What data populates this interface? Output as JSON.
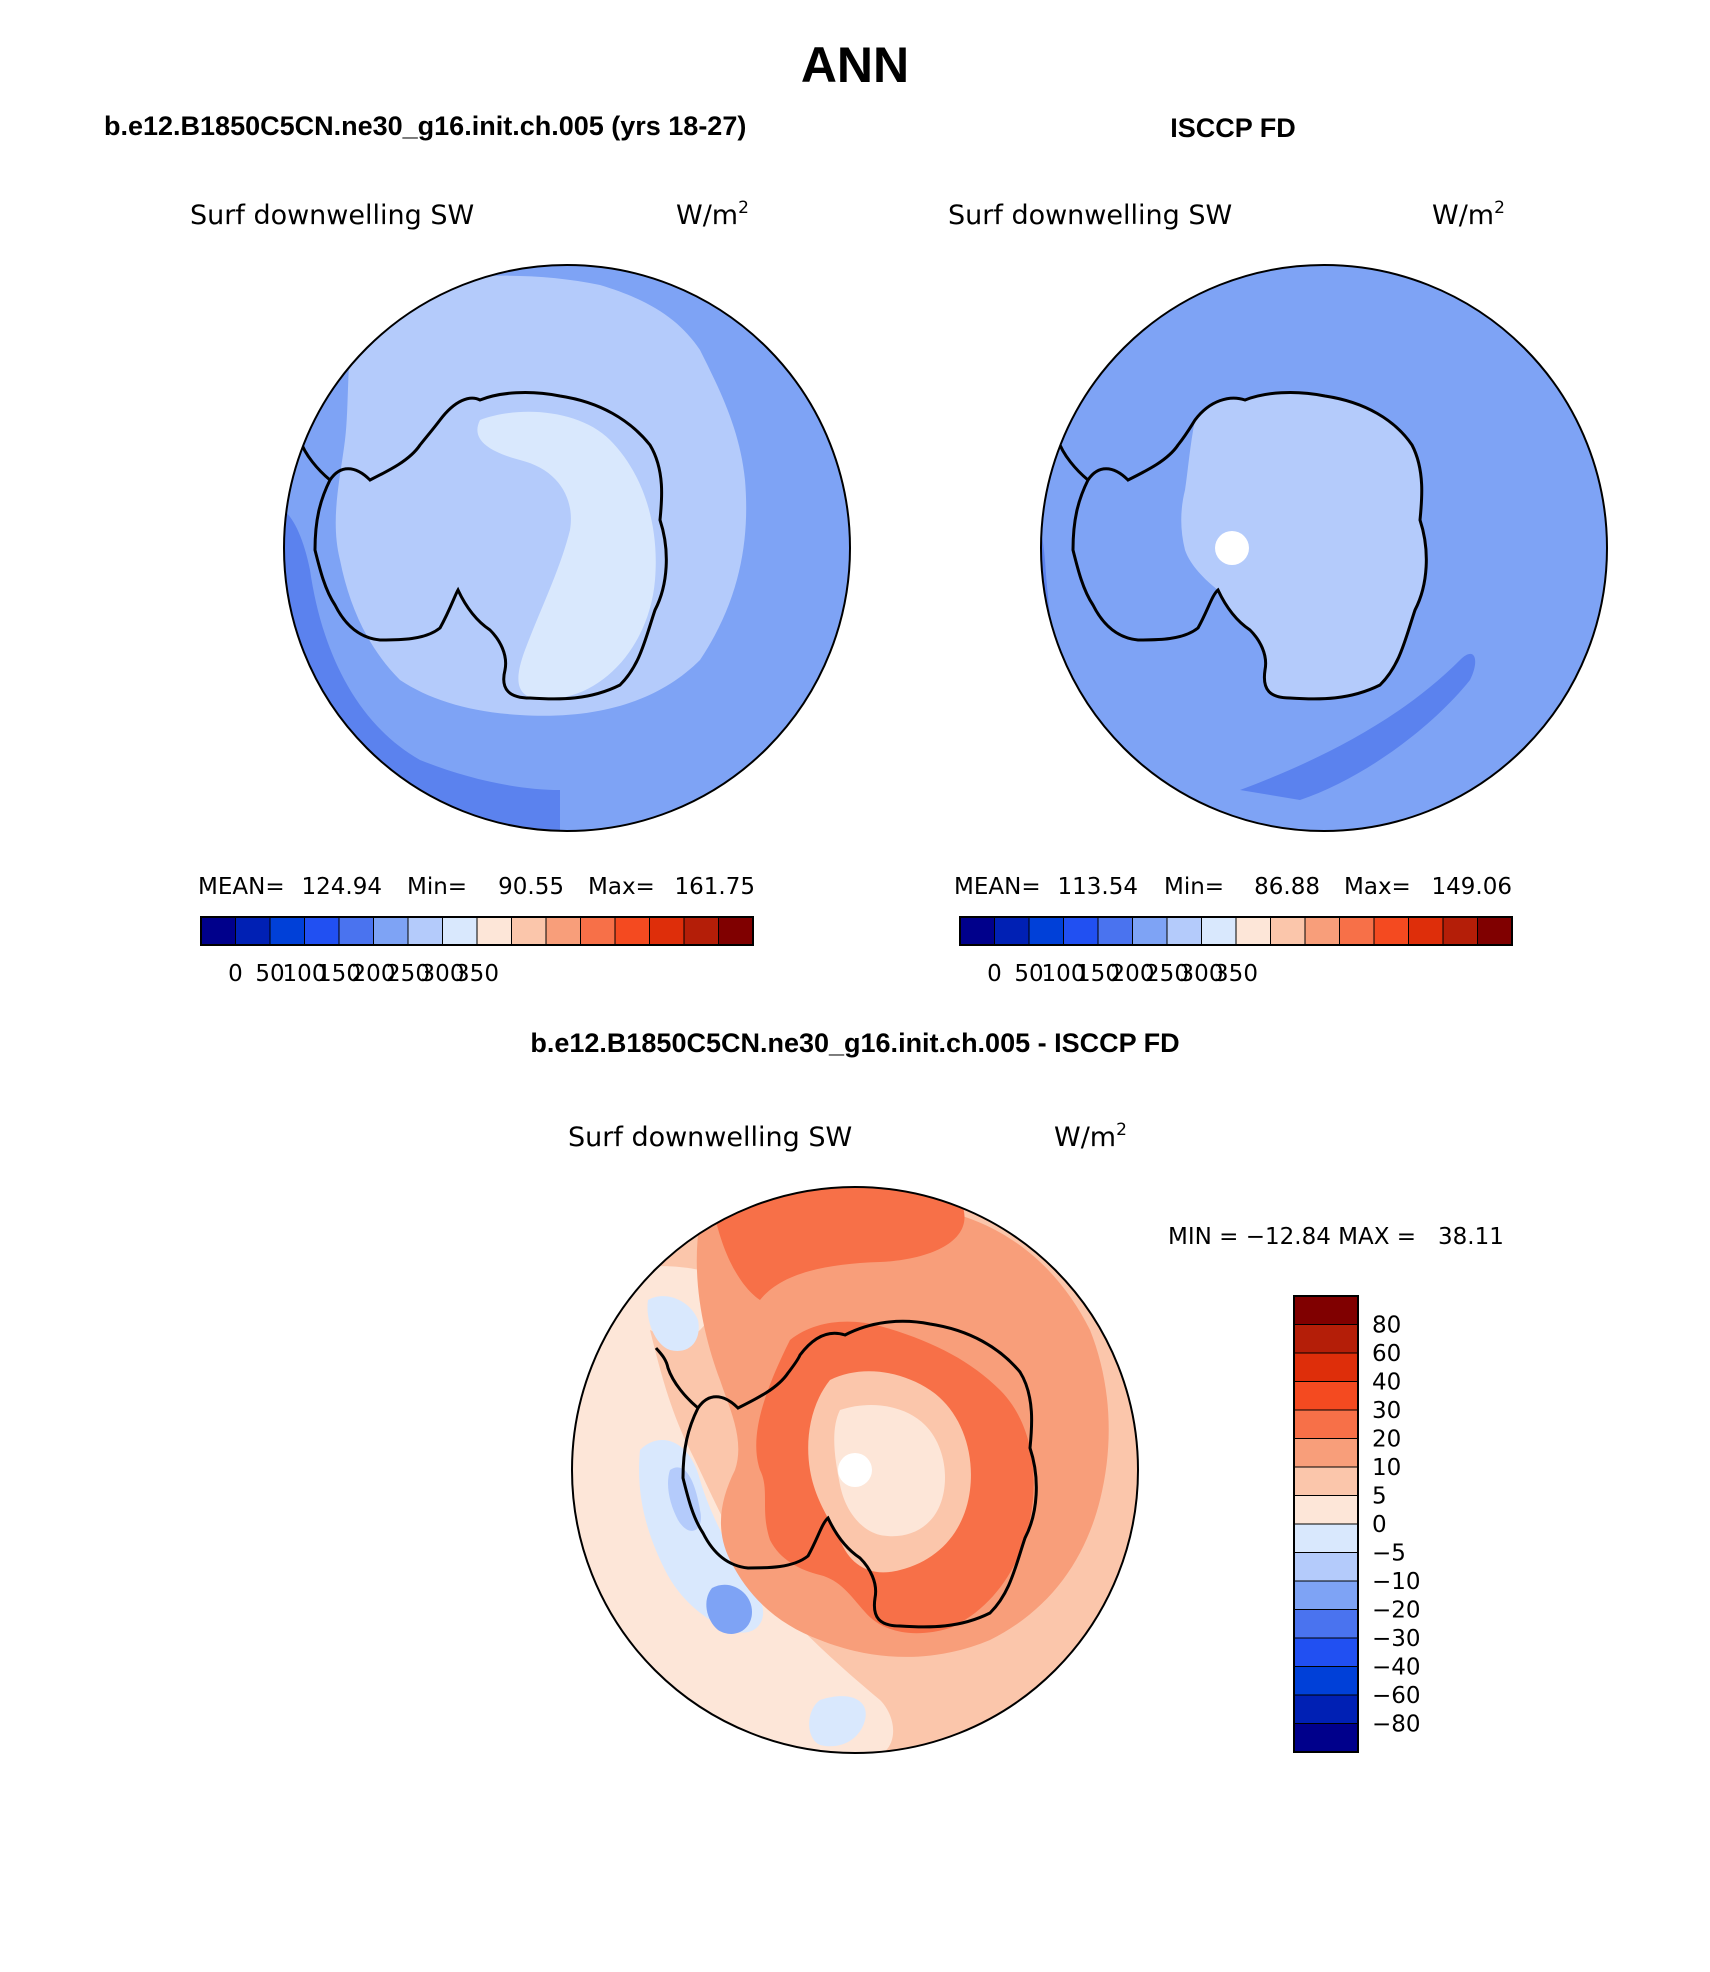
{
  "title": "ANN",
  "panels": [
    {
      "header": "b.e12.B1850C5CN.ne30_g16.init.ch.005 (yrs 18-27)",
      "variable": "Surf downwelling SW",
      "units": "W/m",
      "units_exp": "2",
      "stats": {
        "mean_label": "MEAN=",
        "mean": "124.94",
        "min_label": "Min=",
        "min": "90.55",
        "max_label": "Max=",
        "max": "161.75"
      },
      "map": {
        "base": "#7ea3f5",
        "ring": "#5b82ee",
        "light": "#b4cbfb",
        "lighter": "#d9e8fd",
        "pole_hole": false
      }
    },
    {
      "header": "ISCCP FD",
      "variable": "Surf downwelling SW",
      "units": "W/m",
      "units_exp": "2",
      "stats": {
        "mean_label": "MEAN=",
        "mean": "113.54",
        "min_label": "Min=",
        "min": "86.88",
        "max_label": "Max=",
        "max": "149.06"
      },
      "map": {
        "base": "#7ea3f5",
        "ring": "#5b82ee",
        "light": "#b4cbfb",
        "lighter": "#b4cbfb",
        "pole_hole": true
      }
    }
  ],
  "top_colorbar": {
    "colors": [
      "#00008b",
      "#0020b4",
      "#0040d8",
      "#2150f2",
      "#4a73ef",
      "#7ea3f5",
      "#b4cbfb",
      "#d9e8fd",
      "#fde6d8",
      "#fbc6ab",
      "#f89e7a",
      "#f77048",
      "#f44a20",
      "#de2e0a",
      "#b41e08",
      "#800000"
    ],
    "labels": [
      "0",
      "50",
      "100",
      "150",
      "200",
      "250",
      "300",
      "350"
    ]
  },
  "diff_panel": {
    "header": "b.e12.B1850C5CN.ne30_g16.init.ch.005 - ISCCP FD",
    "variable": "Surf downwelling SW",
    "units": "W/m",
    "units_exp": "2",
    "minmax_text": "MIN = −12.84 MAX =   38.11",
    "map": {
      "base": "#fbc6ab",
      "ring": "#fde6d8",
      "light": "#f89e7a",
      "lighter": "#f77048",
      "pole_hole": true
    }
  },
  "diff_colorbar": {
    "colors": [
      "#800000",
      "#b41e08",
      "#de2e0a",
      "#f44a20",
      "#f77048",
      "#f89e7a",
      "#fbc6ab",
      "#fde6d8",
      "#d9e8fd",
      "#b4cbfb",
      "#7ea3f5",
      "#4a73ef",
      "#2150f2",
      "#0040d8",
      "#0020b4",
      "#00008b"
    ],
    "labels": [
      "80",
      "60",
      "40",
      "30",
      "20",
      "10",
      "5",
      "0",
      "−5",
      "−10",
      "−20",
      "−30",
      "−40",
      "−60",
      "−80"
    ]
  }
}
